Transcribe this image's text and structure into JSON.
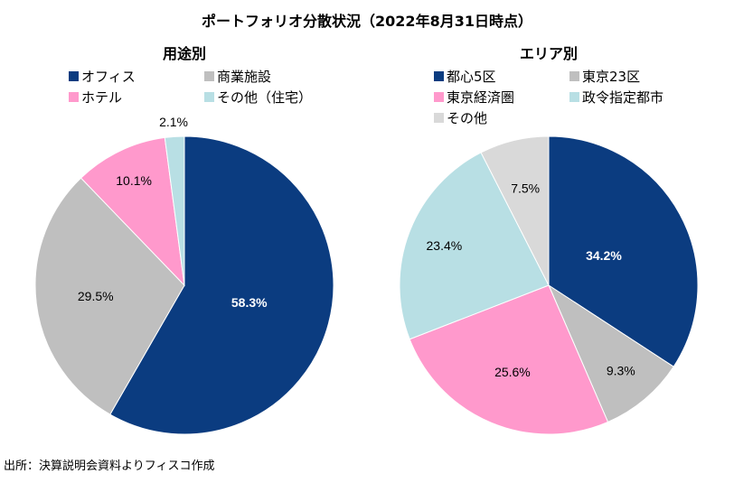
{
  "title": "ポートフォリオ分散状況（2022年8月31日時点）",
  "source": "出所：決算説明会資料よりフィスコ作成",
  "chart_data": [
    {
      "type": "pie",
      "title": "用途別",
      "categories": [
        "オフィス",
        "商業施設",
        "ホテル",
        "その他（住宅）"
      ],
      "values": [
        58.3,
        29.5,
        10.1,
        2.1
      ],
      "labels": [
        "58.3%",
        "29.5%",
        "10.1%",
        "2.1%"
      ],
      "colors": [
        "#0b3c80",
        "#bfbfbf",
        "#ff99cc",
        "#b8dfe4"
      ],
      "label_colors": [
        "#ffffff",
        "#000000",
        "#000000",
        "#000000"
      ],
      "legend": "top"
    },
    {
      "type": "pie",
      "title": "エリア別",
      "categories": [
        "都心5区",
        "東京23区",
        "東京経済圏",
        "政令指定都市",
        "その他"
      ],
      "values": [
        34.2,
        9.3,
        25.6,
        23.4,
        7.5
      ],
      "labels": [
        "34.2%",
        "9.3%",
        "25.6%",
        "23.4%",
        "7.5%"
      ],
      "colors": [
        "#0b3c80",
        "#bfbfbf",
        "#ff99cc",
        "#b8dfe4",
        "#d9d9d9"
      ],
      "label_colors": [
        "#ffffff",
        "#000000",
        "#000000",
        "#000000",
        "#000000"
      ],
      "legend": "top"
    }
  ]
}
